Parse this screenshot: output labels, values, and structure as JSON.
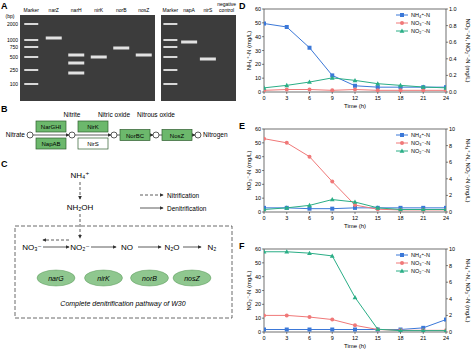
{
  "gel": {
    "label": "A",
    "ladder_title": "(bp)",
    "ladder": [
      2000,
      1000,
      750,
      500,
      250,
      100
    ],
    "lanes_left": [
      "Marker",
      "narZ",
      "narH",
      "nirK",
      "norB",
      "nosZ"
    ],
    "lanes_right": [
      "Marker",
      "napA",
      "nirS",
      "negative control"
    ]
  },
  "pathway_b": {
    "label": "B",
    "compounds": [
      "Nitrate",
      "Nitrite",
      "Nitric oxide",
      "Nitrous oxide",
      "Nitrogen"
    ],
    "steps": [
      [
        {
          "name": "NarGHI",
          "detected": true
        },
        {
          "name": "NapAB",
          "detected": true
        }
      ],
      [
        {
          "name": "NirK",
          "detected": true
        },
        {
          "name": "NirS",
          "detected": false
        }
      ],
      [
        {
          "name": "NorBC",
          "detected": true
        }
      ],
      [
        {
          "name": "NosZ",
          "detected": true
        }
      ]
    ]
  },
  "pathway_c": {
    "label": "C",
    "nitrification": [
      "NH₄⁺",
      "NH₂OH"
    ],
    "chain": [
      "NO₃⁻",
      "NO₂⁻",
      "NO",
      "N₂O",
      "N₂"
    ],
    "genes": [
      "narG",
      "nirK",
      "norB",
      "nosZ"
    ],
    "legend": [
      "Nitrification",
      "Denitrification"
    ],
    "box_title": "Complete denitrification pathway of W30"
  },
  "chart_data": [
    {
      "type": "line",
      "title": "D",
      "x_label": "Time (h)",
      "y_label": "NH₄⁺-N (mg/L)",
      "y2_label": "NO₃⁻-N, NO₂⁻-N (mg/L)",
      "x": [
        0,
        3,
        6,
        9,
        12,
        15,
        18,
        21,
        24
      ],
      "xlim": [
        0,
        24
      ],
      "xticks": [
        0,
        3,
        6,
        9,
        12,
        15,
        18,
        21,
        24
      ],
      "ylim": [
        0,
        60
      ],
      "yticks": [
        0,
        10,
        20,
        30,
        40,
        50,
        60
      ],
      "y2lim": [
        0,
        1
      ],
      "y2ticks": [
        {
          "value": 0,
          "label": "0.0"
        },
        0.2,
        0.4,
        0.6,
        0.8,
        {
          "value": 1,
          "label": "1.0"
        }
      ],
      "legend": "upper right",
      "series": [
        {
          "name": "NH₄⁺-N",
          "color": "#3b78d8",
          "marker": "square",
          "values": [
            49.5,
            47,
            32,
            12,
            4.5,
            3.5,
            3.5,
            3.5,
            3.5
          ]
        },
        {
          "name": "NO₃⁻-N",
          "color": "#f07878",
          "marker": "circle",
          "axis": "y2",
          "values": [
            0.02,
            0.03,
            0.03,
            0.02,
            0.03,
            0.02,
            0.02,
            0.02,
            0.02
          ]
        },
        {
          "name": "NO₂⁻-N",
          "color": "#2aae86",
          "marker": "triangle",
          "axis": "y2",
          "values": [
            0.05,
            0.08,
            0.12,
            0.17,
            0.14,
            0.1,
            0.08,
            0.06,
            0.05
          ]
        }
      ]
    },
    {
      "type": "line",
      "title": "E",
      "x_label": "Time (h)",
      "y_label": "NO₃⁻-N (mg/L)",
      "y2_label": "NH₄⁺-N, NO₂⁻-N (mg/L)",
      "x": [
        0,
        3,
        6,
        9,
        12,
        15,
        18,
        21,
        24
      ],
      "xlim": [
        0,
        24
      ],
      "xticks": [
        0,
        3,
        6,
        9,
        12,
        15,
        18,
        21,
        24
      ],
      "ylim": [
        0,
        60
      ],
      "yticks": [
        0,
        10,
        20,
        30,
        40,
        50,
        60
      ],
      "y2lim": [
        0,
        10
      ],
      "y2ticks": [
        0,
        2,
        4,
        6,
        8,
        10
      ],
      "legend": "upper right",
      "series": [
        {
          "name": "NH₄⁺-N",
          "color": "#3b78d8",
          "marker": "square",
          "axis": "y2",
          "values": [
            0.5,
            0.5,
            0.4,
            0.4,
            0.5,
            0.5,
            0.5,
            0.5,
            0.5
          ]
        },
        {
          "name": "NO₃⁻-N",
          "color": "#f07878",
          "marker": "circle",
          "values": [
            53,
            50,
            40,
            22,
            5,
            2,
            1.5,
            1.5,
            1.5
          ]
        },
        {
          "name": "NO₂⁻-N",
          "color": "#2aae86",
          "marker": "triangle",
          "axis": "y2",
          "values": [
            0.3,
            0.5,
            0.8,
            1.5,
            1.2,
            0.5,
            0.3,
            0.3,
            0.3
          ]
        }
      ]
    },
    {
      "type": "line",
      "title": "F",
      "x_label": "Time (h)",
      "y_label": "NO₂⁻-N (mg/L)",
      "y2_label": "NH₄⁺-N, NO₃⁻-N (mg/L)",
      "x": [
        0,
        3,
        6,
        9,
        12,
        15,
        18,
        21,
        24
      ],
      "xlim": [
        0,
        24
      ],
      "xticks": [
        0,
        3,
        6,
        9,
        12,
        15,
        18,
        21,
        24
      ],
      "ylim": [
        0,
        60
      ],
      "yticks": [
        0,
        10,
        20,
        30,
        40,
        50,
        60
      ],
      "y2lim": [
        0,
        10
      ],
      "y2ticks": [
        0,
        2,
        4,
        6,
        8,
        10
      ],
      "legend": "upper right",
      "series": [
        {
          "name": "NH₄⁺-N",
          "color": "#3b78d8",
          "marker": "square",
          "axis": "y2",
          "values": [
            0.3,
            0.3,
            0.3,
            0.3,
            0.3,
            0.3,
            0.3,
            0.5,
            1.5
          ]
        },
        {
          "name": "NO₃⁻-N",
          "color": "#f07878",
          "marker": "circle",
          "axis": "y2",
          "values": [
            2,
            2,
            1.8,
            1.5,
            0.8,
            0.3,
            0.2,
            0.2,
            0.2
          ]
        },
        {
          "name": "NO₂⁻-N",
          "color": "#2aae86",
          "marker": "triangle",
          "values": [
            58,
            58,
            57,
            55,
            25,
            2,
            1,
            1,
            1
          ]
        }
      ]
    }
  ]
}
